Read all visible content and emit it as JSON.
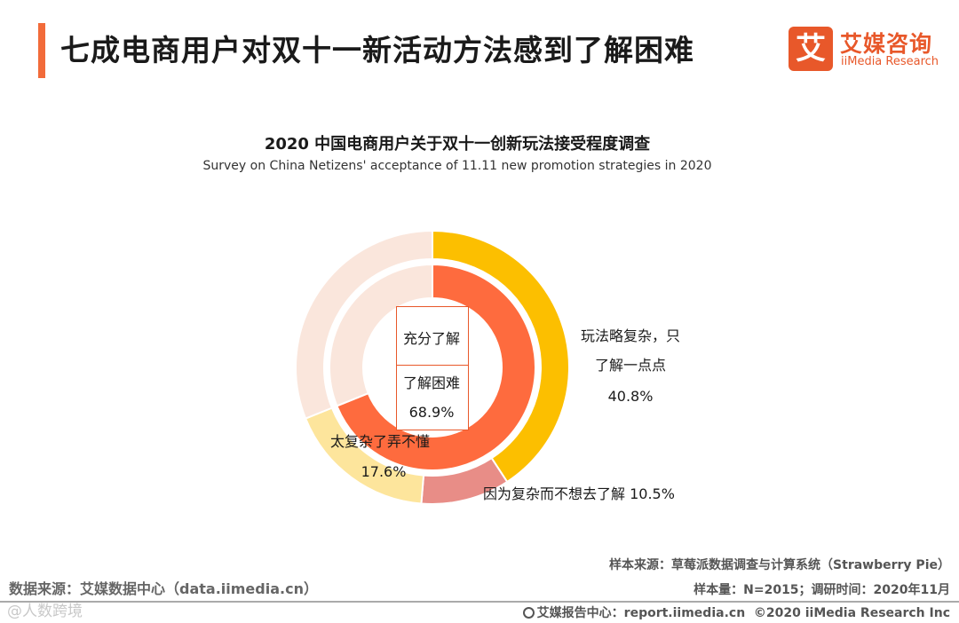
{
  "header": {
    "title": "七成电商用户对双十一新活动方法感到了解困难",
    "logo_mark": "艾",
    "logo_cn": "艾媒咨询",
    "logo_en": "iiMedia Research",
    "accent_color": "#f26b3a"
  },
  "chart_data": {
    "type": "pie",
    "title": "2020 中国电商用户关于双十一创新玩法接受程度调查",
    "subtitle": "Survey on China Netizens' acceptance of 11.11 new promotion strategies in 2020",
    "inner_ring": {
      "center_label_1": "充分了解",
      "center_label_2": "了解困难",
      "center_value": "68.9%",
      "slices": [
        {
          "category": "了解困难",
          "value": 68.9,
          "color": "#fe6b3e"
        },
        {
          "category": "充分了解",
          "value": 31.1,
          "color": "#fae6dc"
        }
      ]
    },
    "outer_ring": {
      "slices": [
        {
          "label_lines": [
            "玩法略复杂，只",
            "了解一点点"
          ],
          "value": 40.8,
          "value_text": "40.8%",
          "color": "#fcbf00"
        },
        {
          "label_lines": [
            "因为复杂而不想去了解 10.5%"
          ],
          "value": 10.5,
          "value_text": "",
          "color": "#e88d87"
        },
        {
          "label_lines": [
            "太复杂了弄不懂"
          ],
          "value": 17.6,
          "value_text": "17.6%",
          "color": "#fde59c"
        },
        {
          "label_lines": [],
          "value": 31.1,
          "value_text": "",
          "color": "#fae6dc"
        }
      ]
    }
  },
  "footer": {
    "source_left": "数据来源：艾媒数据中心（data.iimedia.cn）",
    "sample_source": "样本来源：草莓派数据调查与计算系统（Strawberry Pie）",
    "sample_size": "样本量：N=2015；调研时间：2020年11月",
    "report_center": "艾媒报告中心：report.iimedia.cn",
    "copyright": "©2020  iiMedia Research  Inc",
    "watermark": "@人数跨境"
  }
}
